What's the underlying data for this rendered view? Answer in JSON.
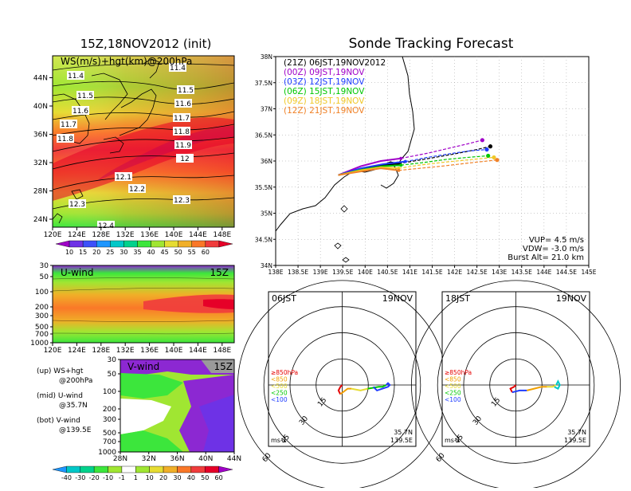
{
  "titles": {
    "left": "15Z,18NOV2012 (init)",
    "right": "Sonde Tracking Forecast"
  },
  "chart_data": [
    {
      "type": "heatmap",
      "panel": "ws-hgt-map",
      "label": "WS(m/s)+hgt(km)@200hPa",
      "x_ticks": [
        "120E",
        "124E",
        "128E",
        "132E",
        "136E",
        "140E",
        "144E",
        "148E"
      ],
      "y_ticks": [
        "24N",
        "28N",
        "32N",
        "36N",
        "40N",
        "44N"
      ],
      "contour_labels": [
        "11.4",
        "11.4",
        "11.5",
        "11.5",
        "11.6",
        "11.6",
        "11.7",
        "11.7",
        "11.8",
        "11.8",
        "11.9",
        "12",
        "12.1",
        "12.2",
        "12.3",
        "12.3",
        "12.4"
      ],
      "colorbar": {
        "values": [
          "10",
          "15",
          "20",
          "25",
          "30",
          "35",
          "40",
          "45",
          "50",
          "55",
          "60"
        ],
        "colors": [
          "#a000c8",
          "#6e32e6",
          "#3c50fa",
          "#1e96ff",
          "#00c8c8",
          "#00d28c",
          "#3ce63c",
          "#a0e632",
          "#e6dc32",
          "#f0af28",
          "#fa7828",
          "#f03c3c",
          "#e60028"
        ]
      }
    },
    {
      "type": "heatmap",
      "panel": "u-wind-section",
      "label": "U-wind",
      "time": "15Z",
      "x_ticks": [
        "120E",
        "124E",
        "128E",
        "132E",
        "136E",
        "140E",
        "144E",
        "148E"
      ],
      "y_ticks": [
        "30",
        "50",
        "100",
        "200",
        "300",
        "500",
        "700",
        "1000"
      ]
    },
    {
      "type": "heatmap",
      "panel": "v-wind-section",
      "label": "V-wind",
      "time": "15Z",
      "x_ticks": [
        "28N",
        "32N",
        "36N",
        "40N",
        "44N"
      ],
      "y_ticks": [
        "30",
        "50",
        "100",
        "200",
        "300",
        "500",
        "700",
        "1000"
      ],
      "colorbar": {
        "values": [
          "-40",
          "-30",
          "-20",
          "-10",
          "-1",
          "1",
          "10",
          "20",
          "30",
          "40",
          "50",
          "60"
        ],
        "colors": [
          "#1e96ff",
          "#00c8c8",
          "#00d28c",
          "#3ce63c",
          "#a0e632",
          "#ffffff",
          "#a0e632",
          "#e6dc32",
          "#f0af28",
          "#fa7828",
          "#f03c3c",
          "#e60028",
          "#a000c8"
        ]
      }
    },
    {
      "type": "line",
      "panel": "track-map",
      "x_ticks": [
        "138E",
        "138.5E",
        "139E",
        "139.5E",
        "140E",
        "140.5E",
        "141E",
        "141.5E",
        "142E",
        "142.5E",
        "143E",
        "143.5E",
        "144E",
        "144.5E",
        "145E"
      ],
      "y_ticks": [
        "34N",
        "34.5N",
        "35N",
        "35.5N",
        "36N",
        "36.5N",
        "37N",
        "37.5N",
        "38N"
      ],
      "xlim": [
        138,
        145
      ],
      "ylim": [
        34,
        38
      ],
      "series": [
        {
          "name": "(21Z) 06JST,19NOV2012",
          "color": "#000000",
          "x": [
            139.4,
            139.9,
            140.4,
            140.75,
            141.3,
            141.9,
            142.5,
            142.8
          ],
          "y": [
            35.73,
            35.84,
            35.92,
            35.95,
            36.03,
            36.12,
            36.22,
            36.28
          ]
        },
        {
          "name": "(00Z) 09JST,19NOV",
          "color": "#a000c8",
          "x": [
            139.4,
            139.9,
            140.35,
            140.8,
            141.4,
            141.9,
            142.3,
            142.62
          ],
          "y": [
            35.73,
            35.9,
            36.0,
            36.05,
            36.15,
            36.25,
            36.33,
            36.4
          ]
        },
        {
          "name": "(03Z) 12JST,19NOV",
          "color": "#1e3cff",
          "x": [
            139.4,
            139.9,
            140.4,
            140.9,
            141.4,
            141.9,
            142.3,
            142.72
          ],
          "y": [
            35.73,
            35.86,
            35.94,
            35.99,
            36.07,
            36.14,
            36.19,
            36.22
          ]
        },
        {
          "name": "(06Z) 15JST,19NOV",
          "color": "#00c800",
          "x": [
            139.4,
            139.9,
            140.4,
            140.8,
            141.3,
            141.8,
            142.3,
            142.75
          ],
          "y": [
            35.73,
            35.83,
            35.9,
            35.92,
            35.97,
            36.03,
            36.07,
            36.1
          ]
        },
        {
          "name": "(09Z) 18JST,19NOV",
          "color": "#f0c828",
          "x": [
            139.4,
            139.9,
            140.35,
            140.75,
            141.2,
            141.8,
            142.4,
            142.88
          ],
          "y": [
            35.73,
            35.82,
            35.88,
            35.86,
            35.92,
            35.98,
            36.03,
            36.07
          ]
        },
        {
          "name": "(12Z) 21JST,19NOV",
          "color": "#f08228",
          "x": [
            139.4,
            139.9,
            140.35,
            140.75,
            141.1,
            141.7,
            142.3,
            142.95
          ],
          "y": [
            35.73,
            35.8,
            35.86,
            35.82,
            35.85,
            35.9,
            35.96,
            36.02
          ]
        }
      ],
      "info": [
        "VUP= 4.5 m/s",
        "VDW= -3.0 m/s",
        "Burst Alt= 21.0 km"
      ]
    },
    {
      "type": "line",
      "panel": "hodograph-06jst",
      "corner_left": "06JST",
      "corner_right": "19NOV",
      "ring_labels": [
        "15",
        "30",
        "45",
        "60"
      ],
      "legend": [
        {
          "label": "≥850hPa",
          "color": "#e60000"
        },
        {
          "label": "<850",
          "color": "#f0a000"
        },
        {
          "label": "<500",
          "color": "#e6dc32"
        },
        {
          "label": "<250",
          "color": "#00c800"
        },
        {
          "label": "<100",
          "color": "#1e3cff"
        }
      ],
      "units": "ms-1",
      "location": [
        "35.7N",
        "139.5E"
      ],
      "segments": [
        {
          "color": "#e60000",
          "points": [
            [
              0,
              0
            ],
            [
              -1,
              -1
            ],
            [
              -2,
              -3
            ],
            [
              -1,
              -5
            ]
          ]
        },
        {
          "color": "#f0a000",
          "points": [
            [
              -1,
              -5
            ],
            [
              3,
              -2
            ],
            [
              5,
              -2
            ]
          ]
        },
        {
          "color": "#e6dc32",
          "points": [
            [
              5,
              -2
            ],
            [
              10,
              -3
            ],
            [
              14,
              -2
            ]
          ]
        },
        {
          "color": "#00c800",
          "points": [
            [
              14,
              -2
            ],
            [
              20,
              -1
            ],
            [
              22,
              -1
            ],
            [
              24,
              0
            ]
          ]
        },
        {
          "color": "#1e3cff",
          "points": [
            [
              24,
              0
            ],
            [
              25,
              1
            ],
            [
              26,
              0
            ],
            [
              25,
              -1
            ],
            [
              22,
              -2
            ],
            [
              19,
              -3
            ],
            [
              17,
              -1
            ]
          ]
        }
      ]
    },
    {
      "type": "line",
      "panel": "hodograph-18jst",
      "corner_left": "18JST",
      "corner_right": "19NOV",
      "ring_labels": [
        "15",
        "30",
        "45",
        "60"
      ],
      "legend": [
        {
          "label": "≥850hPa",
          "color": "#e60000"
        },
        {
          "label": "<850",
          "color": "#f0a000"
        },
        {
          "label": "<500",
          "color": "#e6dc32"
        },
        {
          "label": "<250",
          "color": "#00c800"
        },
        {
          "label": "<100",
          "color": "#1e3cff"
        }
      ],
      "units": "ms-1",
      "location": [
        "35.7N",
        "139.5E"
      ],
      "segments": [
        {
          "color": "#e60000",
          "points": [
            [
              0,
              0
            ],
            [
              -1,
              -1
            ],
            [
              -3,
              -2
            ],
            [
              -2,
              -4
            ]
          ]
        },
        {
          "color": "#1e3cff",
          "points": [
            [
              -2,
              -4
            ],
            [
              2,
              -3
            ],
            [
              6,
              -3
            ]
          ]
        },
        {
          "color": "#f0a000",
          "points": [
            [
              6,
              -3
            ],
            [
              10,
              -2
            ],
            [
              14,
              -1
            ],
            [
              17,
              -1
            ]
          ]
        },
        {
          "color": "#e6dc32",
          "points": [
            [
              17,
              -1
            ],
            [
              20,
              -1
            ],
            [
              22,
              0
            ]
          ]
        },
        {
          "color": "#00c8c8",
          "points": [
            [
              22,
              0
            ],
            [
              23,
              2
            ],
            [
              24,
              0
            ],
            [
              23,
              -2
            ],
            [
              21,
              -1
            ]
          ]
        }
      ]
    }
  ],
  "side_legend": [
    {
      "line1": "(up) WS+hgt",
      "line2": "@200hPa"
    },
    {
      "line1": "(mid) U-wind",
      "line2": "@35.7N"
    },
    {
      "line1": "(bot) V-wind",
      "line2": "@139.5E"
    }
  ]
}
